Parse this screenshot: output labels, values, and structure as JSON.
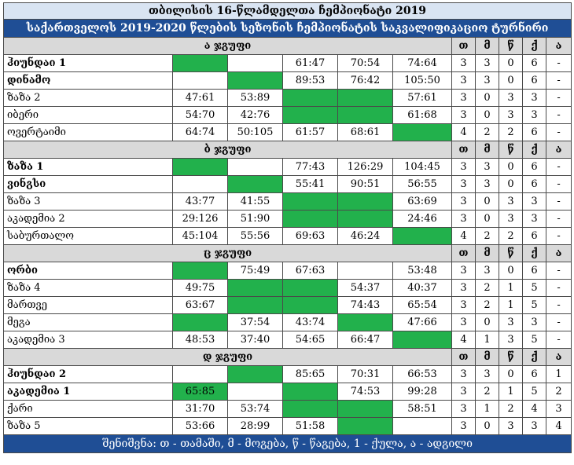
{
  "title": "თბილისის 16-წლამდელთა ჩემპიონატი 2019",
  "subtitle": "საქართველოს 2019-2020 წლების სეზონის ჩემპიონატის საკვალიფიკაციო ტურნირი",
  "stat_headers": [
    "თ",
    "მ",
    "წ",
    "ქ",
    "ა"
  ],
  "groups": [
    {
      "name": "ა ჯგუფი",
      "teams": [
        {
          "name": "ჰიუნდაი 1",
          "bold": true,
          "scores": [
            "",
            "",
            "61:47",
            "70:54",
            "74:64"
          ],
          "stats": [
            "3",
            "3",
            "0",
            "6",
            "-"
          ]
        },
        {
          "name": "დინამო",
          "bold": true,
          "scores": [
            "",
            "",
            "89:53",
            "76:42",
            "105:50"
          ],
          "stats": [
            "3",
            "3",
            "0",
            "6",
            "-"
          ]
        },
        {
          "name": "ზაზა 2",
          "bold": false,
          "scores": [
            "47:61",
            "53:89",
            "",
            "",
            "57:61"
          ],
          "stats": [
            "3",
            "0",
            "3",
            "3",
            "-"
          ]
        },
        {
          "name": "იბერი",
          "bold": false,
          "scores": [
            "54:70",
            "42:76",
            "",
            "",
            "61:68"
          ],
          "stats": [
            "3",
            "0",
            "3",
            "3",
            "-"
          ]
        },
        {
          "name": "ოვერტაიმი",
          "bold": false,
          "scores": [
            "64:74",
            "50:105",
            "61:57",
            "68:61",
            ""
          ],
          "stats": [
            "4",
            "2",
            "2",
            "6",
            "-"
          ]
        }
      ]
    },
    {
      "name": "ბ ჯგუფი",
      "teams": [
        {
          "name": "ზაზა 1",
          "bold": true,
          "scores": [
            "",
            "",
            "77:43",
            "126:29",
            "104:45"
          ],
          "stats": [
            "3",
            "3",
            "0",
            "6",
            "-"
          ]
        },
        {
          "name": "ვინგსი",
          "bold": true,
          "scores": [
            "",
            "",
            "55:41",
            "90:51",
            "56:55"
          ],
          "stats": [
            "3",
            "3",
            "0",
            "6",
            "-"
          ]
        },
        {
          "name": "ზაზა 3",
          "bold": false,
          "scores": [
            "43:77",
            "41:55",
            "",
            "",
            "63:69"
          ],
          "stats": [
            "3",
            "0",
            "3",
            "3",
            "-"
          ]
        },
        {
          "name": "აკადემია 2",
          "bold": false,
          "scores": [
            "29:126",
            "51:90",
            "",
            "",
            "24:46"
          ],
          "stats": [
            "3",
            "0",
            "3",
            "3",
            "-"
          ]
        },
        {
          "name": "საბურთალო",
          "bold": false,
          "scores": [
            "45:104",
            "55:56",
            "69:63",
            "46:24",
            ""
          ],
          "stats": [
            "4",
            "2",
            "2",
            "6",
            "-"
          ]
        }
      ]
    },
    {
      "name": "ც ჯგუფი",
      "teams": [
        {
          "name": "ორბი",
          "bold": true,
          "scores": [
            "",
            "75:49",
            "67:63",
            "",
            "53:48"
          ],
          "stats": [
            "3",
            "3",
            "0",
            "6",
            "-"
          ]
        },
        {
          "name": "ზაზა 4",
          "bold": false,
          "scores": [
            "49:75",
            "",
            "",
            "54:37",
            "40:37"
          ],
          "stats": [
            "3",
            "2",
            "1",
            "5",
            "-"
          ]
        },
        {
          "name": "მართვე",
          "bold": false,
          "scores": [
            "63:67",
            "",
            "",
            "74:43",
            "65:54"
          ],
          "stats": [
            "3",
            "2",
            "1",
            "5",
            "-"
          ]
        },
        {
          "name": "მეგა",
          "bold": false,
          "scores": [
            "",
            "37:54",
            "43:74",
            "",
            "47:66"
          ],
          "stats": [
            "3",
            "0",
            "3",
            "3",
            "-"
          ]
        },
        {
          "name": "აკადემია 3",
          "bold": false,
          "scores": [
            "48:53",
            "37:40",
            "54:65",
            "66:47",
            ""
          ],
          "stats": [
            "4",
            "1",
            "3",
            "5",
            "-"
          ]
        }
      ]
    },
    {
      "name": "დ ჯგუფი",
      "teams": [
        {
          "name": "ჰიუნდაი 2",
          "bold": true,
          "scores": [
            "",
            "",
            "85:65",
            "70:31",
            "66:53"
          ],
          "stats": [
            "3",
            "3",
            "0",
            "6",
            "1"
          ]
        },
        {
          "name": "აკადემია 1",
          "bold": true,
          "scores": [
            "65:85",
            "",
            "",
            "74:53",
            "99:28"
          ],
          "stats": [
            "3",
            "2",
            "1",
            "5",
            "2"
          ]
        },
        {
          "name": "ქარი",
          "bold": false,
          "scores": [
            "31:70",
            "53:74",
            "",
            "",
            "58:51"
          ],
          "stats": [
            "3",
            "1",
            "2",
            "4",
            "3"
          ]
        },
        {
          "name": "ზაზა 5",
          "bold": false,
          "scores": [
            "53:66",
            "28:99",
            "51:58",
            "",
            ""
          ],
          "stats": [
            "3",
            "0",
            "3",
            "3",
            "4"
          ]
        }
      ]
    }
  ],
  "green_cells": [
    [
      [
        0
      ],
      [
        1
      ],
      [
        2,
        3
      ],
      [
        2,
        3
      ],
      [
        4
      ]
    ],
    [
      [
        0
      ],
      [
        1
      ],
      [
        2,
        3
      ],
      [
        2,
        3
      ],
      [
        4
      ]
    ],
    [
      [
        0
      ],
      [
        1,
        2
      ],
      [
        1,
        2
      ],
      [
        0,
        3
      ],
      [
        4
      ]
    ],
    [
      [
        1
      ],
      [
        0,
        2
      ],
      [
        2,
        3
      ],
      [
        3
      ]
    ]
  ],
  "footer": "შენიშვნა: თ - თამაში, მ - მოგება, წ - წაგება, 1 - ქულა, ა - ადგილი",
  "colors": {
    "header_blue": "#1f4e95",
    "title_blue": "#d9e4f2",
    "group_gray": "#d9d9d9",
    "highlight_green": "#22b14c"
  }
}
